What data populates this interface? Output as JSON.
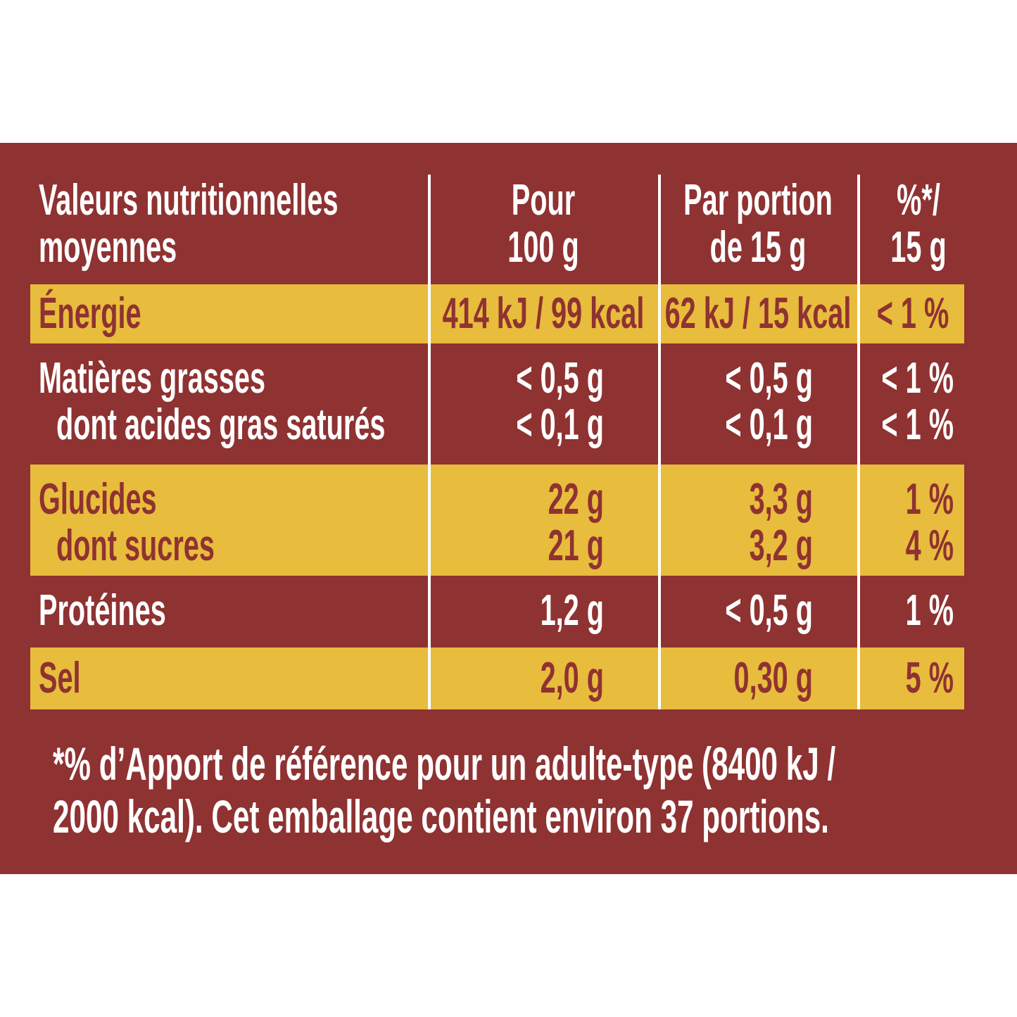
{
  "table": {
    "header": [
      [
        "Valeurs nutritionnelles",
        "moyennes"
      ],
      [
        "Pour",
        "100 g"
      ],
      [
        "Par portion",
        "de 15 g"
      ],
      [
        "%*/",
        "15 g"
      ]
    ],
    "groups": [
      {
        "highlight": true,
        "lines": [
          [
            "Énergie",
            "414 kJ / 99 kcal",
            "62 kJ / 15 kcal",
            "< 1 %"
          ]
        ]
      },
      {
        "highlight": false,
        "lines": [
          [
            "Matières grasses",
            "< 0,5 g",
            "< 0,5 g",
            "< 1 %"
          ],
          [
            "dont acides gras saturés",
            "< 0,1 g",
            "< 0,1 g",
            "< 1 %"
          ]
        ]
      },
      {
        "highlight": true,
        "lines": [
          [
            "Glucides",
            "22 g",
            "3,3 g",
            "1 %"
          ],
          [
            "dont sucres",
            "21 g",
            "3,2 g",
            "4 %"
          ]
        ]
      },
      {
        "highlight": false,
        "lines": [
          [
            "Protéines",
            "1,2 g",
            "< 0,5 g",
            "1 %"
          ]
        ]
      },
      {
        "highlight": true,
        "lines": [
          [
            "Sel",
            "2,0 g",
            "0,30 g",
            "5 %"
          ]
        ]
      }
    ]
  },
  "footnote": [
    "*% d’Apport de référence pour un adulte-type (8400 kJ /",
    "2000 kcal). Cet emballage contient environ 37 portions."
  ]
}
